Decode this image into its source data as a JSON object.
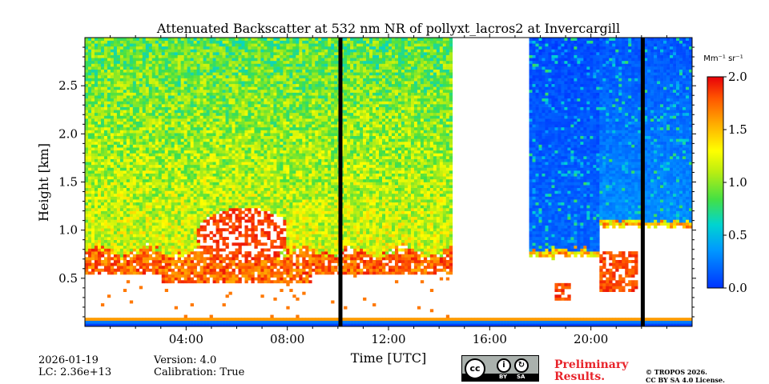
{
  "chart_data": {
    "type": "heatmap",
    "title": "Attenuated Backscatter at 532 nm NR of pollyxt_lacros2 at Invercargill",
    "xlabel": "Time [UTC]",
    "ylabel": "Height [km]",
    "xlim_hours": [
      0,
      24
    ],
    "ylim_km": [
      0,
      3.0
    ],
    "x_ticks": [
      {
        "hour": 4,
        "label": "04:00"
      },
      {
        "hour": 8,
        "label": "08:00"
      },
      {
        "hour": 12,
        "label": "12:00"
      },
      {
        "hour": 16,
        "label": "16:00"
      },
      {
        "hour": 20,
        "label": "20:00"
      }
    ],
    "x_minor_hours": [
      1,
      2,
      3,
      5,
      6,
      7,
      9,
      10,
      11,
      13,
      14,
      15,
      17,
      18,
      19,
      21,
      22,
      23
    ],
    "y_ticks": [
      {
        "value": 0.5,
        "label": "0.5"
      },
      {
        "value": 1.0,
        "label": "1.0"
      },
      {
        "value": 1.5,
        "label": "1.5"
      },
      {
        "value": 2.0,
        "label": "2.0"
      },
      {
        "value": 2.5,
        "label": "2.5"
      }
    ],
    "colorbar": {
      "units_label": "Mm⁻¹ sr⁻¹",
      "range": [
        0,
        2.0
      ],
      "ticks": [
        {
          "value": 0.0,
          "label": "0.0"
        },
        {
          "value": 0.5,
          "label": "0.5"
        },
        {
          "value": 1.0,
          "label": "1.0"
        },
        {
          "value": 1.5,
          "label": "1.5"
        },
        {
          "value": 2.0,
          "label": "2.0"
        }
      ]
    },
    "no_data_hours": [
      [
        14.5,
        17.6
      ]
    ],
    "gap_lines_hours": [
      10.1,
      22.05
    ],
    "features": [
      {
        "name": "aerosol layer top",
        "start_hour": 0,
        "end_hour": 14.5,
        "height_km": 0.75
      },
      {
        "name": "elevated layer",
        "start_hour": 4.5,
        "end_hour": 7.8,
        "height_km": 1.0
      },
      {
        "name": "cloud base",
        "start_hour": 17.6,
        "end_hour": 20.3,
        "height_km": 0.75
      },
      {
        "name": "cloud base",
        "start_hour": 20.3,
        "end_hour": 24,
        "height_km": 1.05
      },
      {
        "name": "low cloud patch",
        "start_hour": 20.3,
        "end_hour": 21.8,
        "height_km": 0.55
      }
    ]
  },
  "footer": {
    "date": "2026-01-19",
    "lc": "LC: 2.36e+13",
    "version": "Version: 4.0",
    "calibration": "Calibration: True",
    "preliminary_line1": "Preliminary",
    "preliminary_line2": "Results.",
    "copyright_line1": "© TROPOS 2026.",
    "copyright_line2": "CC BY SA 4.0 License.",
    "badge_cc": "cc",
    "badge_by": "BY",
    "badge_sa": "SA"
  },
  "colors": {
    "low": "#0033ff",
    "mid": "#7ddc1f",
    "high": "#e8391c",
    "no_data": "#ffffff",
    "gap": "#000000",
    "preliminary": "#e8242b"
  }
}
